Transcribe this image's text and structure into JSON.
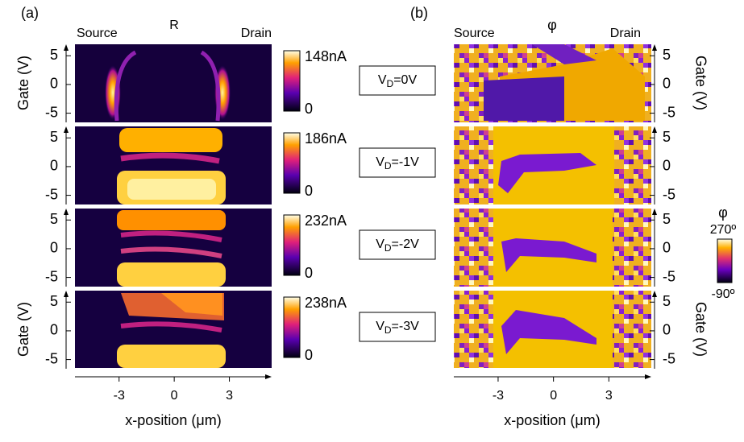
{
  "figure": {
    "panels": [
      {
        "label": "(a)",
        "title": "R",
        "left_label": "Source",
        "right_label": "Drain",
        "ylabel": "Gate (V)",
        "yticks": [
          5,
          0,
          -5
        ],
        "ylim": [
          -6.6,
          7
        ],
        "xlabel": "x-position (μm)",
        "xticks": [
          -3,
          0,
          3
        ],
        "xlim": [
          -5.4,
          5.3
        ],
        "colorbars": [
          {
            "max": "148nA",
            "min": "0"
          },
          {
            "max": "186nA",
            "min": "0"
          },
          {
            "max": "232nA",
            "min": "0"
          },
          {
            "max": "238nA",
            "min": "0"
          }
        ]
      },
      {
        "label": "(b)",
        "title": "φ",
        "left_label": "Source",
        "right_label": "Drain",
        "ylabel": "Gate (V)",
        "yticks": [
          5,
          0,
          -5
        ],
        "ylim": [
          -6.6,
          7
        ],
        "xlabel": "x-position (μm)",
        "xticks": [
          -3,
          0,
          3
        ],
        "xlim": [
          -5.4,
          5.3
        ],
        "colorbar": {
          "title": "φ",
          "max": "270º",
          "min": "-90º"
        }
      }
    ],
    "conditions": [
      {
        "base": "V",
        "sub": "D",
        "rest": "=0V"
      },
      {
        "base": "V",
        "sub": "D",
        "rest": "=-1V"
      },
      {
        "base": "V",
        "sub": "D",
        "rest": "=-2V"
      },
      {
        "base": "V",
        "sub": "D",
        "rest": "=-3V"
      }
    ]
  }
}
